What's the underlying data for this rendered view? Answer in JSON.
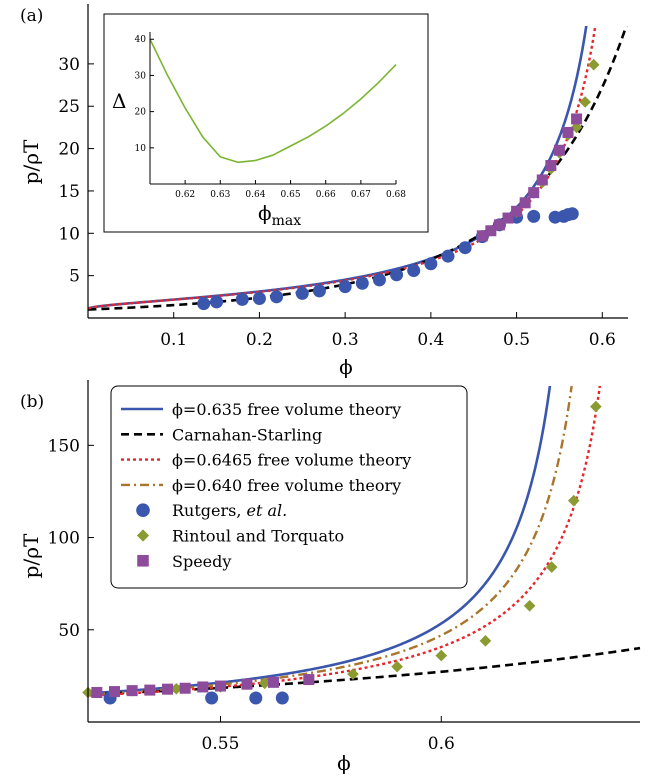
{
  "colors": {
    "blue": "#3a56ad",
    "black": "#000000",
    "red": "#e8262a",
    "brown": "#a9752c",
    "green": "#7ab530",
    "olive": "#8c9a32",
    "purple": "#8d4b9c"
  },
  "chart_data": [
    {
      "type": "line",
      "panel_label": "(a)",
      "xlabel": "ϕ",
      "ylabel": "p/ρT",
      "xlim": [
        0.0,
        0.63
      ],
      "ylim": [
        0,
        34
      ],
      "xticks": [
        "0.1",
        "0.2",
        "0.3",
        "0.4",
        "0.5",
        "0.6"
      ],
      "yticks": [
        "5",
        "10",
        "15",
        "20",
        "25",
        "30"
      ],
      "grid": false,
      "series": [
        {
          "name": "ϕ=0.635 free volume theory",
          "style": "solid",
          "color": "blue",
          "phi_max": 0.635
        },
        {
          "name": "Carnahan-Starling",
          "style": "dashed",
          "color": "black"
        },
        {
          "name": "ϕ=0.6465 free volume theory",
          "style": "dotted",
          "color": "red",
          "phi_max": 0.6465
        },
        {
          "name": "Rutgers, et al.",
          "style": "marker-circle",
          "color": "blue",
          "x": [
            0.135,
            0.15,
            0.18,
            0.2,
            0.22,
            0.25,
            0.27,
            0.3,
            0.32,
            0.34,
            0.36,
            0.38,
            0.4,
            0.42,
            0.44,
            0.46,
            0.48,
            0.5,
            0.52,
            0.545,
            0.555,
            0.56,
            0.565
          ],
          "y": [
            1.7,
            1.9,
            2.2,
            2.3,
            2.5,
            2.9,
            3.2,
            3.7,
            4.1,
            4.5,
            5.1,
            5.6,
            6.4,
            7.3,
            8.3,
            9.6,
            11.0,
            11.9,
            12.0,
            11.9,
            12.0,
            12.2,
            12.3
          ]
        },
        {
          "name": "Rintoul and Torquato",
          "style": "marker-diamond",
          "color": "olive",
          "x": [
            0.5,
            0.51,
            0.52,
            0.53,
            0.54,
            0.55,
            0.56,
            0.57,
            0.58,
            0.59
          ],
          "y": [
            12.5,
            13.6,
            14.8,
            16.0,
            17.6,
            19.5,
            21.6,
            22.5,
            25.5,
            29.9
          ]
        },
        {
          "name": "Speedy",
          "style": "marker-square",
          "color": "purple",
          "x": [
            0.46,
            0.47,
            0.48,
            0.49,
            0.5,
            0.51,
            0.52,
            0.53,
            0.54,
            0.55,
            0.56,
            0.57
          ],
          "y": [
            9.7,
            10.3,
            11.0,
            11.8,
            12.6,
            13.6,
            14.8,
            16.3,
            18.0,
            19.8,
            21.9,
            23.5
          ]
        }
      ],
      "inset": {
        "type": "line",
        "xlabel": "ϕmax",
        "ylabel": "Δ",
        "xlim": [
          0.61,
          0.68
        ],
        "ylim": [
          0,
          42
        ],
        "xticks": [
          "0.62",
          "0.63",
          "0.64",
          "0.65",
          "0.66",
          "0.67",
          "0.68"
        ],
        "yticks": [
          "10",
          "20",
          "30",
          "40"
        ],
        "series": [
          {
            "style": "solid",
            "color": "green",
            "x": [
              0.61,
              0.615,
              0.62,
              0.625,
              0.63,
              0.635,
              0.64,
              0.645,
              0.65,
              0.655,
              0.66,
              0.665,
              0.67,
              0.675,
              0.68
            ],
            "y": [
              40,
              30,
              21,
              13,
              7.5,
              6,
              6.5,
              8,
              10.5,
              13,
              16,
              19.5,
              23.5,
              28,
              33
            ]
          }
        ]
      }
    },
    {
      "type": "line",
      "panel_label": "(b)",
      "xlabel": "ϕ",
      "ylabel": "p/ρT",
      "xlim": [
        0.52,
        0.645
      ],
      "ylim": [
        0,
        180
      ],
      "xticks": [
        "0.55",
        "0.6"
      ],
      "yticks": [
        "50",
        "100",
        "150"
      ],
      "grid": false,
      "legend_position": "top-left",
      "series": [
        {
          "name": "ϕ=0.635 free volume theory",
          "style": "solid",
          "color": "blue",
          "phi_max": 0.635
        },
        {
          "name": "Carnahan-Starling",
          "style": "dashed",
          "color": "black"
        },
        {
          "name": "ϕ=0.6465 free volume theory",
          "style": "dotted",
          "color": "red",
          "phi_max": 0.6465
        },
        {
          "name": "ϕ=0.640 free volume theory",
          "style": "dashdot",
          "color": "brown",
          "phi_max": 0.64
        },
        {
          "name": "Rutgers, et al.",
          "style": "marker-circle",
          "color": "blue",
          "x": [
            0.525,
            0.548,
            0.558,
            0.564
          ],
          "y": [
            13,
            13,
            13,
            13
          ]
        },
        {
          "name": "Rintoul and Torquato",
          "style": "marker-diamond",
          "color": "olive",
          "x": [
            0.52,
            0.53,
            0.54,
            0.55,
            0.56,
            0.57,
            0.58,
            0.59,
            0.6,
            0.61,
            0.62,
            0.625,
            0.63,
            0.635
          ],
          "y": [
            16,
            17,
            18,
            19,
            21,
            23,
            26,
            30,
            36,
            44,
            63,
            84,
            120,
            171
          ]
        },
        {
          "name": "Speedy",
          "style": "marker-square",
          "color": "purple",
          "x": [
            0.522,
            0.526,
            0.53,
            0.534,
            0.538,
            0.542,
            0.546,
            0.55,
            0.556,
            0.562,
            0.57
          ],
          "y": [
            16,
            16.5,
            17,
            17.3,
            17.8,
            18.3,
            19.0,
            19.5,
            20.5,
            21.5,
            23
          ]
        }
      ]
    }
  ]
}
